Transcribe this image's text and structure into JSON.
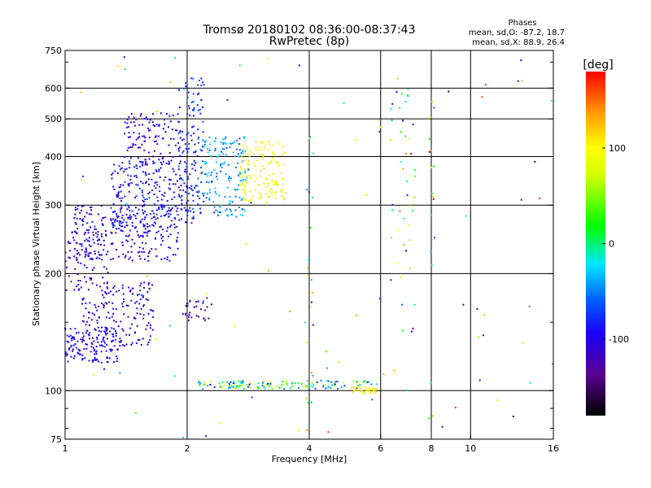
{
  "chart_data": {
    "type": "scatter",
    "title": "Tromsø 20180102 08:36:00-08:37:43",
    "subtitle": "RwPretec (8p)",
    "xlabel": "Frequency [MHz]",
    "ylabel": "Stationary phase Virtual Height [km]",
    "x_scale": "log",
    "y_scale": "log",
    "xlim": [
      1,
      16
    ],
    "ylim": [
      75,
      750
    ],
    "x_ticks": [
      1,
      2,
      4,
      6,
      8,
      10,
      16
    ],
    "x_tick_labels": [
      "1",
      "2",
      "4",
      "6",
      "8",
      "10",
      "16"
    ],
    "y_ticks": [
      75,
      100,
      200,
      300,
      400,
      500,
      600,
      750
    ],
    "y_tick_labels": [
      "75",
      "100",
      "200",
      "300",
      "400",
      "500",
      "600",
      "750"
    ],
    "grid": true,
    "info": {
      "heading": "Phases",
      "line1": "mean, sd,O: -87.2, 18.7",
      "line2": "mean, sd,X: 88.9, 26.4"
    },
    "colorbar": {
      "label": "[deg]",
      "range": [
        -180,
        180
      ],
      "ticks": [
        100,
        0,
        -100
      ],
      "tick_labels": [
        "100",
        "0",
        "-100"
      ]
    },
    "clusters": [
      {
        "x": [
          1.0,
          1.35
        ],
        "y": [
          118,
          145
        ],
        "n": 140,
        "phase": [
          -105,
          -80
        ]
      },
      {
        "x": [
          1.1,
          1.65
        ],
        "y": [
          130,
          190
        ],
        "n": 170,
        "phase": [
          -130,
          -85
        ]
      },
      {
        "x": [
          1.0,
          1.3
        ],
        "y": [
          180,
          260
        ],
        "n": 70,
        "phase": [
          -130,
          -95
        ]
      },
      {
        "x": [
          1.05,
          1.9
        ],
        "y": [
          215,
          300
        ],
        "n": 260,
        "phase": [
          -120,
          -80
        ]
      },
      {
        "x": [
          1.3,
          2.1
        ],
        "y": [
          260,
          390
        ],
        "n": 260,
        "phase": [
          -115,
          -70
        ]
      },
      {
        "x": [
          1.4,
          1.95
        ],
        "y": [
          380,
          520
        ],
        "n": 120,
        "phase": [
          -120,
          -85
        ]
      },
      {
        "x": [
          1.9,
          2.2
        ],
        "y": [
          280,
          640
        ],
        "n": 110,
        "phase": [
          -95,
          -55
        ]
      },
      {
        "x": [
          2.2,
          2.8
        ],
        "y": [
          280,
          450
        ],
        "n": 150,
        "phase": [
          -65,
          -20
        ]
      },
      {
        "x": [
          2.7,
          3.5
        ],
        "y": [
          305,
          440
        ],
        "n": 150,
        "phase": [
          80,
          115
        ]
      },
      {
        "x": [
          1.95,
          2.3
        ],
        "y": [
          150,
          175
        ],
        "n": 30,
        "phase": [
          -150,
          -95
        ]
      },
      {
        "x": [
          2.1,
          5.9
        ],
        "y": [
          101,
          106
        ],
        "n": 140,
        "phase": [
          -90,
          90
        ]
      },
      {
        "x": [
          5.1,
          5.9
        ],
        "y": [
          98,
          102
        ],
        "n": 35,
        "phase": [
          95,
          120
        ]
      },
      {
        "x": [
          3.9,
          4.1
        ],
        "y": [
          78,
          500
        ],
        "n": 25,
        "phase": [
          -150,
          150
        ]
      },
      {
        "x": [
          6.3,
          7.3
        ],
        "y": [
          140,
          600
        ],
        "n": 45,
        "phase": [
          -150,
          150
        ]
      },
      {
        "x": [
          7.9,
          8.15
        ],
        "y": [
          200,
          580
        ],
        "n": 15,
        "phase": [
          -150,
          150
        ]
      },
      {
        "x": [
          1.0,
          16.0
        ],
        "y": [
          75,
          750
        ],
        "n": 90,
        "phase": [
          -160,
          170
        ]
      }
    ]
  }
}
